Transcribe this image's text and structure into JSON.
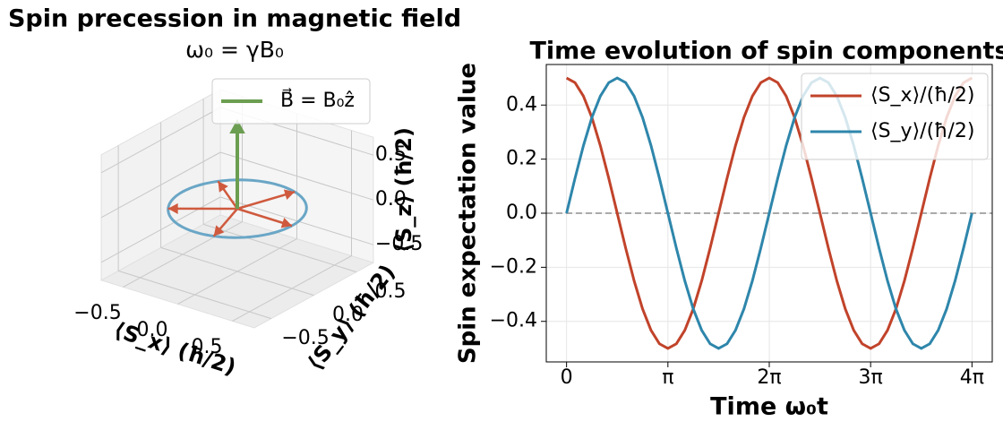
{
  "chart_data": [
    {
      "type": "quiver3d",
      "title": "Spin precession in magnetic field",
      "subtitle": "ω₀ = γB₀",
      "xlabel": "⟨S_x⟩ (ħ/2)",
      "ylabel": "⟨S_y⟩ (ħ/2)",
      "zlabel": "⟨S_z⟩ (ħ/2)",
      "xlim": [
        -0.7,
        0.7
      ],
      "ylim": [
        -0.7,
        0.7
      ],
      "zlim": [
        -0.7,
        0.7
      ],
      "xticks": [
        {
          "value": -0.5,
          "label": "−0.5"
        },
        {
          "value": 0,
          "label": "0.0"
        },
        0.5
      ],
      "yticks": [
        {
          "value": -0.5,
          "label": "−0.5"
        },
        {
          "value": 0,
          "label": "0.0"
        },
        0.5
      ],
      "zticks": [
        {
          "value": -0.5,
          "label": "−0.5"
        },
        {
          "value": 0,
          "label": "0.0"
        },
        0.5
      ],
      "circle": {
        "radius": 0.5,
        "color": "#6aa6c6"
      },
      "spins": {
        "color": "#cf5a3e",
        "x": [
          0.5,
          0.155,
          -0.405,
          -0.405,
          0.155
        ],
        "y": [
          0,
          0.476,
          0.294,
          -0.294,
          -0.476
        ]
      },
      "field": {
        "name": "B⃗ = B₀ẑ",
        "color": "#6b9e50",
        "z": 1.0
      },
      "legend": "upper right"
    },
    {
      "type": "line",
      "title": "Time evolution of spin components",
      "xlabel": "Time ω₀t",
      "ylabel": "Spin expectation value",
      "x": [
        0,
        0.2618,
        0.5236,
        0.7854,
        1.0472,
        1.309,
        1.5708,
        1.8326,
        2.0944,
        2.3562,
        2.618,
        2.8798,
        3.1416,
        3.4034,
        3.6652,
        3.927,
        4.1888,
        4.4506,
        4.7124,
        4.9742,
        5.236,
        5.4978,
        5.7596,
        6.0214,
        6.2832,
        6.545,
        6.8068,
        7.0686,
        7.3304,
        7.5922,
        7.854,
        8.1158,
        8.3776,
        8.6394,
        8.9012,
        9.163,
        9.4248,
        9.6866,
        9.9484,
        10.2102,
        10.472,
        10.7338,
        10.9956,
        11.2574,
        11.5192,
        11.781,
        12.0428,
        12.3046,
        12.5664
      ],
      "series": [
        {
          "name": "⟨S_x⟩/(ħ/2)",
          "color": "#c1432a",
          "values": [
            0.5,
            0.483,
            0.433,
            0.354,
            0.25,
            0.129,
            0,
            -0.129,
            -0.25,
            -0.354,
            -0.433,
            -0.483,
            -0.5,
            -0.483,
            -0.433,
            -0.354,
            -0.25,
            -0.129,
            0,
            0.129,
            0.25,
            0.354,
            0.433,
            0.483,
            0.5,
            0.483,
            0.433,
            0.354,
            0.25,
            0.129,
            0,
            -0.129,
            -0.25,
            -0.354,
            -0.433,
            -0.483,
            -0.5,
            -0.483,
            -0.433,
            -0.354,
            -0.25,
            -0.129,
            0,
            0.129,
            0.25,
            0.354,
            0.433,
            0.483,
            0.5
          ]
        },
        {
          "name": "⟨S_y⟩/(ħ/2)",
          "color": "#2e86ab",
          "values": [
            0,
            0.129,
            0.25,
            0.354,
            0.433,
            0.483,
            0.5,
            0.483,
            0.433,
            0.354,
            0.25,
            0.129,
            0,
            -0.129,
            -0.25,
            -0.354,
            -0.433,
            -0.483,
            -0.5,
            -0.483,
            -0.433,
            -0.354,
            -0.25,
            -0.129,
            0,
            0.129,
            0.25,
            0.354,
            0.433,
            0.483,
            0.5,
            0.483,
            0.433,
            0.354,
            0.25,
            0.129,
            0,
            -0.129,
            -0.25,
            -0.354,
            -0.433,
            -0.483,
            -0.5,
            -0.483,
            -0.433,
            -0.354,
            -0.25,
            -0.129,
            0
          ]
        }
      ],
      "xlim": [
        -0.6283,
        13.1947
      ],
      "ylim": [
        -0.55,
        0.55
      ],
      "xticks": [
        0,
        {
          "value": 3.1416,
          "label": "π"
        },
        {
          "value": 6.2832,
          "label": "2π"
        },
        {
          "value": 9.4248,
          "label": "3π"
        },
        {
          "value": 12.5664,
          "label": "4π"
        }
      ],
      "yticks": [
        {
          "value": -0.4,
          "label": "−0.4"
        },
        {
          "value": -0.2,
          "label": "−0.2"
        },
        {
          "value": 0,
          "label": "0.0"
        },
        0.2,
        0.4
      ],
      "hline": 0,
      "grid": true,
      "legend": "upper right"
    }
  ]
}
